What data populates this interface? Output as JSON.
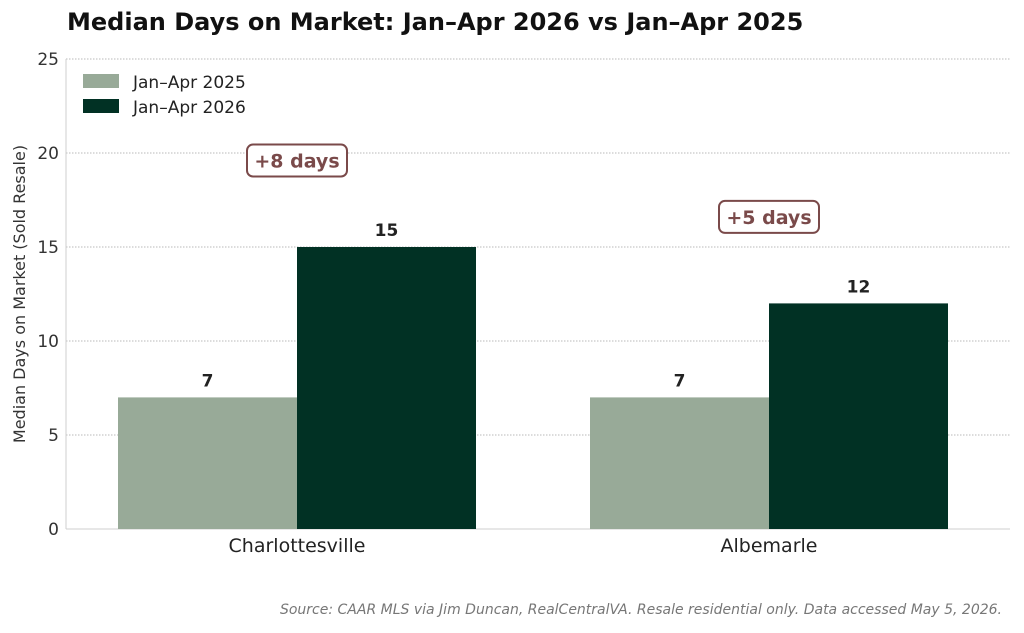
{
  "chart_data": {
    "type": "bar",
    "title": "Median Days on Market: Jan–Apr 2026 vs Jan–Apr 2025",
    "ylabel": "Median Days on Market (Sold Resale)",
    "xlabel": "",
    "categories": [
      "Charlottesville",
      "Albemarle"
    ],
    "series": [
      {
        "name": "Jan–Apr 2025",
        "values": [
          7,
          7
        ],
        "color": "#98aa98",
        "labels": [
          "7",
          "7"
        ]
      },
      {
        "name": "Jan–Apr 2026",
        "values": [
          15,
          12
        ],
        "color": "#013124",
        "labels": [
          "15",
          "12"
        ]
      }
    ],
    "ylim": [
      0,
      25
    ],
    "yticks": [
      0,
      5,
      10,
      15,
      20,
      25
    ],
    "ytick_labels": [
      "0",
      "5",
      "10",
      "15",
      "20",
      "25"
    ],
    "grid": true,
    "legend_position": "top-left",
    "annotations": [
      {
        "category": "Charlottesville",
        "text": "+8 days",
        "y": 19.6,
        "color": "#7a4a4a"
      },
      {
        "category": "Albemarle",
        "text": "+5 days",
        "y": 16.6,
        "color": "#7a4a4a"
      }
    ],
    "source": "Source: CAAR MLS via Jim Duncan, RealCentralVA. Resale residential only. Data accessed May 5, 2026."
  }
}
